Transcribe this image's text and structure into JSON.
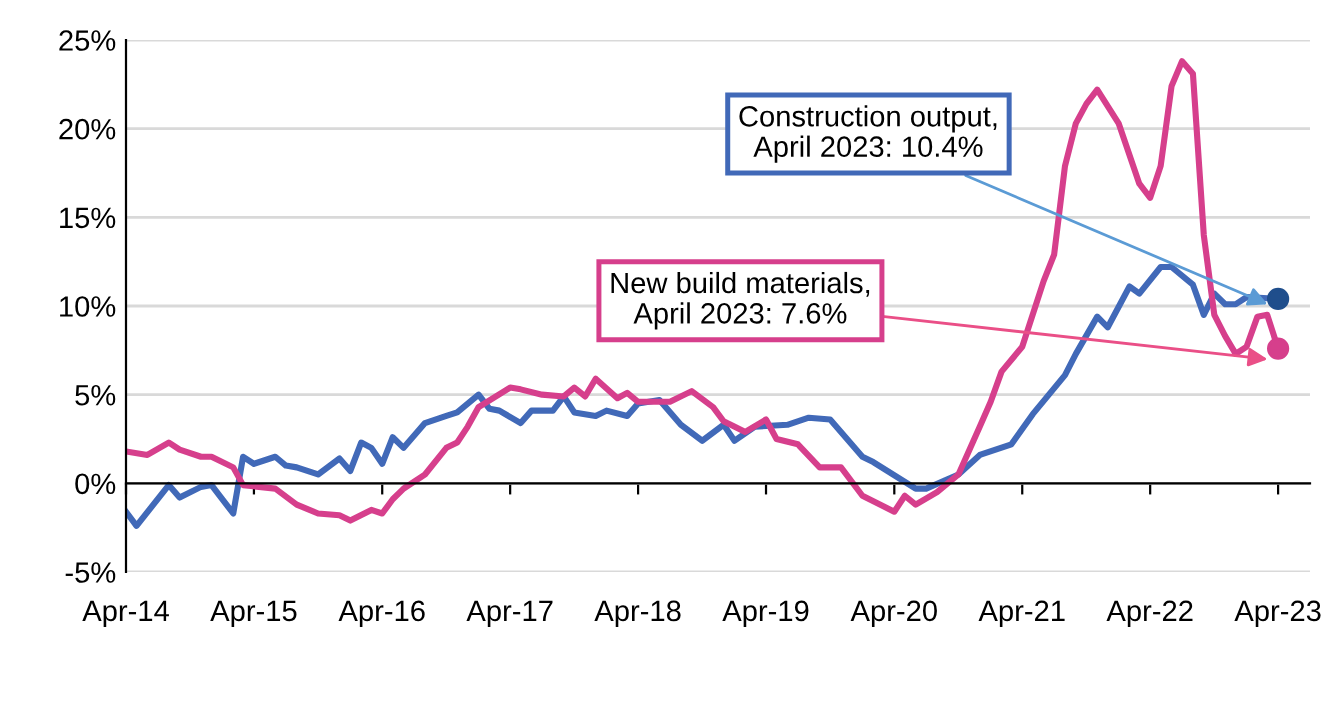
{
  "chart_data": {
    "type": "line",
    "xlim": [
      "2014-04",
      "2023-07"
    ],
    "ylim": [
      -5,
      25
    ],
    "xticks": [
      {
        "value": "2014-04",
        "label": "Apr-14"
      },
      {
        "value": "2015-04",
        "label": "Apr-15"
      },
      {
        "value": "2016-04",
        "label": "Apr-16"
      },
      {
        "value": "2017-04",
        "label": "Apr-17"
      },
      {
        "value": "2018-04",
        "label": "Apr-18"
      },
      {
        "value": "2019-04",
        "label": "Apr-19"
      },
      {
        "value": "2020-04",
        "label": "Apr-20"
      },
      {
        "value": "2021-04",
        "label": "Apr-21"
      },
      {
        "value": "2022-04",
        "label": "Apr-22"
      },
      {
        "value": "2023-04",
        "label": "Apr-23"
      }
    ],
    "yticks": [
      {
        "value": -5,
        "label": "-5%"
      },
      {
        "value": 0,
        "label": "0%"
      },
      {
        "value": 5,
        "label": "5%"
      },
      {
        "value": 10,
        "label": "10%"
      },
      {
        "value": 15,
        "label": "15%"
      },
      {
        "value": 20,
        "label": "20%"
      },
      {
        "value": 25,
        "label": "25%"
      }
    ],
    "grid": "y",
    "line_style": "solid",
    "series": [
      {
        "color": "#4169b8",
        "x": [
          "2014-04",
          "2014-05",
          "2014-08",
          "2014-09",
          "2014-11",
          "2014-12",
          "2015-02",
          "2015-03",
          "2015-04",
          "2015-06",
          "2015-07",
          "2015-08",
          "2015-10",
          "2015-12",
          "2016-01",
          "2016-02",
          "2016-03",
          "2016-04",
          "2016-05",
          "2016-06",
          "2016-08",
          "2016-10",
          "2016-11",
          "2017-01",
          "2017-02",
          "2017-03",
          "2017-05",
          "2017-06",
          "2017-08",
          "2017-09",
          "2017-10",
          "2017-12",
          "2018-01",
          "2018-03",
          "2018-04",
          "2018-06",
          "2018-08",
          "2018-10",
          "2018-12",
          "2019-01",
          "2019-03",
          "2019-06",
          "2019-08",
          "2019-10",
          "2020-01",
          "2020-02",
          "2020-06",
          "2020-07",
          "2020-10",
          "2020-12",
          "2021-03",
          "2021-05",
          "2021-08",
          "2021-09",
          "2021-11",
          "2021-12",
          "2022-02",
          "2022-03",
          "2022-05",
          "2022-06",
          "2022-08",
          "2022-09",
          "2022-10",
          "2022-11",
          "2022-12",
          "2023-01",
          "2023-04"
        ],
        "values": [
          -1.6,
          -2.4,
          -0.1,
          -0.8,
          -0.2,
          -0.1,
          -1.7,
          1.5,
          1.1,
          1.5,
          1.0,
          0.9,
          0.5,
          1.4,
          0.7,
          2.3,
          2.0,
          1.1,
          2.6,
          2.0,
          3.4,
          3.8,
          4.0,
          5.0,
          4.2,
          4.1,
          3.4,
          4.1,
          4.1,
          4.9,
          4.0,
          3.8,
          4.1,
          3.8,
          4.5,
          4.7,
          3.3,
          2.4,
          3.3,
          2.4,
          3.2,
          3.3,
          3.7,
          3.6,
          1.5,
          1.2,
          -0.3,
          -0.3,
          0.5,
          1.6,
          2.2,
          3.9,
          6.1,
          7.3,
          9.4,
          8.8,
          11.1,
          10.7,
          12.2,
          12.2,
          11.2,
          9.5,
          10.7,
          10.1,
          10.1,
          10.5,
          10.4
        ]
      },
      {
        "color": "#d63f8c",
        "x": [
          "2014-04",
          "2014-06",
          "2014-08",
          "2014-09",
          "2014-11",
          "2014-12",
          "2015-02",
          "2015-03",
          "2015-06",
          "2015-08",
          "2015-10",
          "2015-12",
          "2016-01",
          "2016-03",
          "2016-04",
          "2016-05",
          "2016-06",
          "2016-08",
          "2016-10",
          "2016-11",
          "2016-12",
          "2017-01",
          "2017-04",
          "2017-05",
          "2017-07",
          "2017-09",
          "2017-10",
          "2017-11",
          "2017-12",
          "2018-02",
          "2018-03",
          "2018-04",
          "2018-07",
          "2018-09",
          "2018-11",
          "2018-12",
          "2019-02",
          "2019-04",
          "2019-05",
          "2019-07",
          "2019-09",
          "2019-11",
          "2020-01",
          "2020-04",
          "2020-05",
          "2020-06",
          "2020-08",
          "2020-10",
          "2020-12",
          "2021-01",
          "2021-02",
          "2021-04",
          "2021-06",
          "2021-07",
          "2021-08",
          "2021-09",
          "2021-10",
          "2021-11",
          "2022-01",
          "2022-03",
          "2022-04",
          "2022-05",
          "2022-06",
          "2022-07",
          "2022-08",
          "2022-09",
          "2022-10",
          "2022-11",
          "2022-12",
          "2023-01",
          "2023-02",
          "2023-03",
          "2023-04"
        ],
        "values": [
          1.8,
          1.6,
          2.3,
          1.9,
          1.5,
          1.5,
          0.9,
          -0.1,
          -0.3,
          -1.2,
          -1.7,
          -1.8,
          -2.1,
          -1.5,
          -1.7,
          -0.9,
          -0.3,
          0.5,
          2.0,
          2.3,
          3.2,
          4.3,
          5.4,
          5.3,
          5.0,
          4.9,
          5.4,
          4.9,
          5.9,
          4.8,
          5.1,
          4.6,
          4.6,
          5.2,
          4.3,
          3.5,
          2.9,
          3.6,
          2.5,
          2.2,
          0.9,
          0.9,
          -0.7,
          -1.6,
          -0.7,
          -1.2,
          -0.5,
          0.5,
          3.2,
          4.6,
          6.3,
          7.7,
          11.4,
          12.9,
          17.9,
          20.3,
          21.4,
          22.2,
          20.3,
          16.9,
          16.1,
          17.9,
          22.4,
          23.8,
          23.1,
          14.0,
          9.5,
          8.3,
          7.3,
          7.7,
          9.4,
          9.5,
          7.6
        ]
      }
    ],
    "annotations": [
      {
        "text": "Construction output,\nApril 2023: 10.4%",
        "x": "2023-04",
        "y": 10.4
      },
      {
        "text": "New build materials,\nApril 2023: 7.6%",
        "x": "2023-04",
        "y": 7.6
      }
    ]
  }
}
